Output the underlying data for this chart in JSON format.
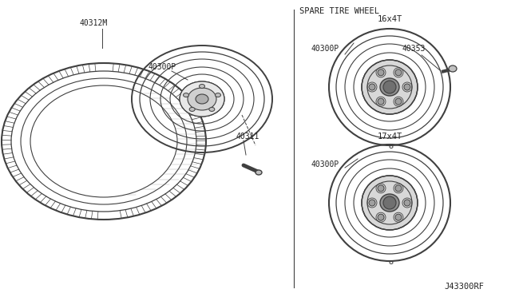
{
  "bg_color": "#ffffff",
  "title_spare": "SPARE TIRE WHEEL",
  "label_16x4T": "16x4T",
  "label_17x4T": "17x4T",
  "part_40312M": "40312M",
  "part_40311": "40311",
  "part_40300P": "40300P",
  "part_40300P_r1": "40300P",
  "part_40300P_r2": "40300P",
  "part_40353": "40353",
  "footer": "J43300RF",
  "line_color": "#404040",
  "text_color": "#222222",
  "fig_width": 6.4,
  "fig_height": 3.72
}
